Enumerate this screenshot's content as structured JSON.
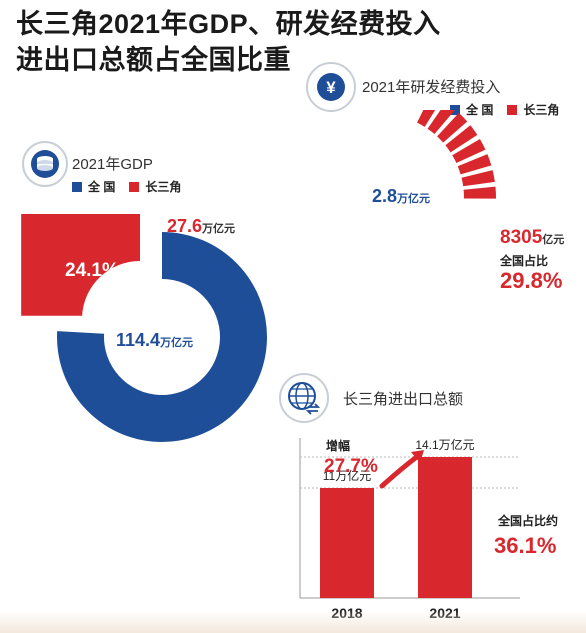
{
  "title": {
    "line1": "长三角2021年GDP、研发经费投入",
    "line2": "进出口总额占全国比重"
  },
  "colors": {
    "nation": "#1f4e99",
    "yrd": "#d9272e",
    "grid": "#bbbbbb",
    "icon_bg": "#1f4e99"
  },
  "chart_data": [
    {
      "type": "pie",
      "title": "2021年GDP",
      "legend": [
        "全 国",
        "长三角"
      ],
      "slices": [
        {
          "name": "全国",
          "value": 114.4,
          "label": "114.4",
          "unit": "万亿元"
        },
        {
          "name": "长三角",
          "value": 27.6,
          "label": "27.6",
          "unit": "万亿元"
        }
      ],
      "share_label": "24.1%",
      "share_fraction": 0.241
    },
    {
      "type": "pie",
      "title": "2021年研发经费投入",
      "legend": [
        "全 国",
        "长三角"
      ],
      "total": {
        "label": "2.8",
        "unit": "万亿元"
      },
      "yrd": {
        "label": "8305",
        "unit": "亿元",
        "share_caption": "全国占比",
        "share_label": "29.8%"
      },
      "segments": 8,
      "share_fraction": 0.298
    },
    {
      "type": "bar",
      "title": "长三角进出口总额",
      "categories": [
        "2018",
        "2021"
      ],
      "values": [
        11,
        14.1
      ],
      "value_labels": [
        "11万亿元",
        "14.1万亿元"
      ],
      "ylim": [
        0,
        16
      ],
      "growth_caption": "增幅",
      "growth_label": "27.7%",
      "share_caption": "全国占比约",
      "share_label": "36.1%"
    }
  ],
  "icons": {
    "gdp": "coin-stack-icon",
    "rd": "yen-icon",
    "trade": "globe-trade-icon"
  }
}
